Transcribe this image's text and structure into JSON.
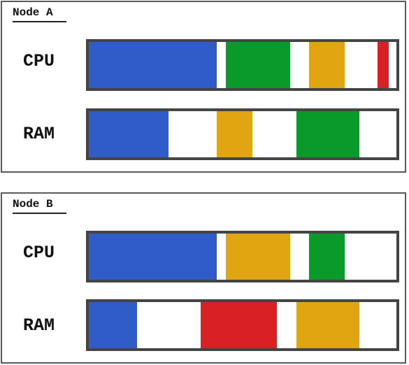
{
  "colors": {
    "blue": "#2f5cc8",
    "green": "#0a9a2a",
    "amber": "#e1a512",
    "red": "#d92025",
    "frame": "#444444",
    "panel_border": "#5a5a5a"
  },
  "nodes": [
    {
      "title": "Node A",
      "resources": [
        {
          "label": "CPU",
          "segments": [
            {
              "color": "blue",
              "start": 0.0,
              "end": 0.415
            },
            {
              "color": "green",
              "start": 0.446,
              "end": 0.654
            },
            {
              "color": "amber",
              "start": 0.716,
              "end": 0.832
            },
            {
              "color": "red",
              "start": 0.939,
              "end": 0.975
            }
          ]
        },
        {
          "label": "RAM",
          "segments": [
            {
              "color": "blue",
              "start": 0.0,
              "end": 0.26
            },
            {
              "color": "amber",
              "start": 0.415,
              "end": 0.53
            },
            {
              "color": "green",
              "start": 0.675,
              "end": 0.88
            }
          ]
        }
      ]
    },
    {
      "title": "Node B",
      "resources": [
        {
          "label": "CPU",
          "segments": [
            {
              "color": "blue",
              "start": 0.0,
              "end": 0.415
            },
            {
              "color": "amber",
              "start": 0.446,
              "end": 0.654
            },
            {
              "color": "green",
              "start": 0.716,
              "end": 0.832
            }
          ]
        },
        {
          "label": "RAM",
          "segments": [
            {
              "color": "blue",
              "start": 0.0,
              "end": 0.156
            },
            {
              "color": "red",
              "start": 0.363,
              "end": 0.61
            },
            {
              "color": "amber",
              "start": 0.675,
              "end": 0.88
            }
          ]
        }
      ]
    }
  ]
}
